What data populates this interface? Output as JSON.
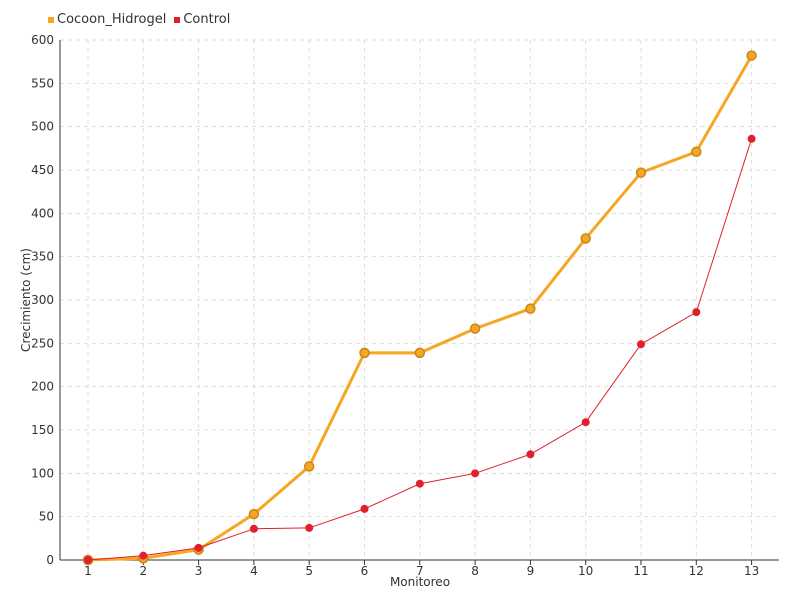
{
  "chart_data": {
    "type": "line",
    "title": "",
    "xlabel": "Monitoreo",
    "ylabel": "Crecimiento (cm)",
    "categories": [
      "1",
      "2",
      "3",
      "4",
      "5",
      "6",
      "7",
      "8",
      "9",
      "10",
      "11",
      "12",
      "13"
    ],
    "ylim": [
      0,
      600
    ],
    "yticks": [
      0,
      50,
      100,
      150,
      200,
      250,
      300,
      350,
      400,
      450,
      500,
      550,
      600
    ],
    "grid": true,
    "legend_position": "top-left",
    "series": [
      {
        "name": "Cocoon_Hidrogel",
        "color": "#f5a623",
        "marker_stroke": "#c8861a",
        "values": [
          0,
          2,
          12,
          53,
          108,
          239,
          239,
          267,
          290,
          371,
          447,
          471,
          582
        ]
      },
      {
        "name": "Control",
        "color": "#e0202c",
        "marker_stroke": "#e0202c",
        "values": [
          0,
          5,
          14,
          36,
          37,
          59,
          88,
          100,
          122,
          159,
          249,
          286,
          486
        ]
      }
    ]
  }
}
